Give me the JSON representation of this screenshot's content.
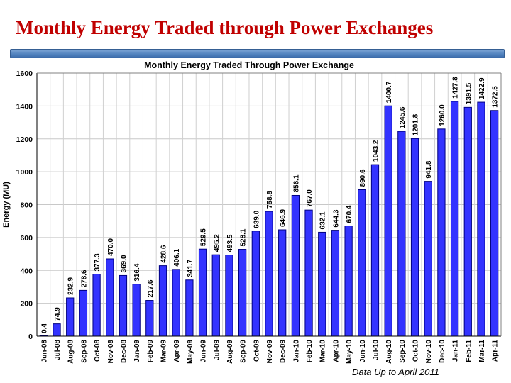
{
  "slide": {
    "title": "Monthly Energy Traded through Power Exchanges",
    "footnote": "Data Up to April  2011",
    "accent_color": "#c00000",
    "bar_color": "#4f81bd"
  },
  "chart_data": {
    "type": "bar",
    "title": "Monthly Energy Traded Through Power Exchange",
    "xlabel": "",
    "ylabel": "Energy (MU)",
    "ylim": [
      0,
      1600
    ],
    "yticks": [
      0,
      200,
      400,
      600,
      800,
      1000,
      1200,
      1400,
      1600
    ],
    "grid": true,
    "legend": "none",
    "bar_fill": "#3333ff",
    "bar_stroke": "#000080",
    "categories": [
      "Jun-08",
      "Jul-08",
      "Aug-08",
      "Sep-08",
      "Oct-08",
      "Nov-08",
      "Dec-08",
      "Jan-09",
      "Feb-09",
      "Mar-09",
      "Apr-09",
      "May-09",
      "Jun-09",
      "Jul-09",
      "Aug-09",
      "Sep-09",
      "Oct-09",
      "Nov-09",
      "Dec-09",
      "Jan-10",
      "Feb-10",
      "Mar-10",
      "Apr-10",
      "May-10",
      "Jun-10",
      "Jul-10",
      "Aug-10",
      "Sep-10",
      "Oct-10",
      "Nov-10",
      "Dec-10",
      "Jan-11",
      "Feb-11",
      "Mar-11",
      "Apr-11"
    ],
    "values": [
      0.4,
      74.9,
      232.9,
      278.6,
      377.3,
      470.0,
      369.0,
      316.4,
      217.6,
      428.6,
      406.1,
      341.7,
      529.5,
      495.2,
      493.5,
      528.1,
      639.0,
      758.8,
      646.9,
      856.1,
      767.0,
      632.1,
      644.3,
      670.4,
      890.6,
      1043.2,
      1400.7,
      1245.6,
      1201.8,
      941.8,
      1260.0,
      1427.8,
      1391.5,
      1422.9,
      1372.5
    ],
    "value_labels": [
      "0.4",
      "74.9",
      "232.9",
      "278.6",
      "377.3",
      "470.0",
      "369.0",
      "316.4",
      "217.6",
      "428.6",
      "406.1",
      "341.7",
      "529.5",
      "495.2",
      "493.5",
      "528.1",
      "639.0",
      "758.8",
      "646.9",
      "856.1",
      "767.0",
      "632.1",
      "644.3",
      "670.4",
      "890.6",
      "1043.2",
      "1400.7",
      "1245.6",
      "1201.8",
      "941.8",
      "1260.0",
      "1427.8",
      "1391.5",
      "1422.9",
      "1372.5"
    ]
  }
}
